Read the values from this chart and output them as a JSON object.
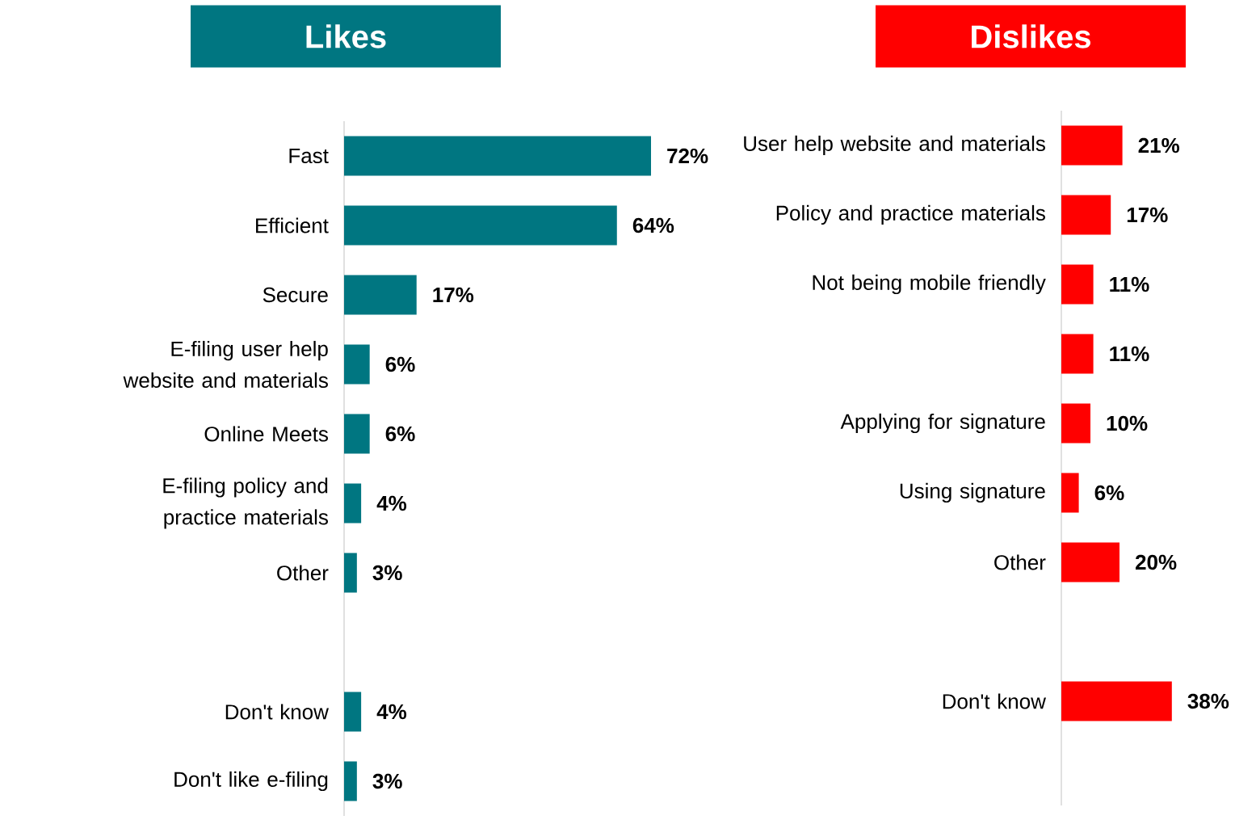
{
  "chart_data": [
    {
      "type": "bar",
      "orientation": "horizontal",
      "title": "Likes",
      "categories": [
        "Fast",
        "Efficient",
        "Secure",
        "E-filing user help website and materials",
        "Online Meets",
        "E-filing policy and practice materials",
        "Other",
        null,
        "Don't know",
        "Don't like e-filing"
      ],
      "series": [
        {
          "color": "#007681",
          "values": [
            72,
            64,
            17,
            6,
            6,
            4,
            3,
            null,
            4,
            3
          ],
          "value_labels": [
            "72%",
            "64%",
            "17%",
            "6%",
            "6%",
            "4%",
            "3%",
            null,
            "4%",
            "3%"
          ]
        }
      ]
    },
    {
      "type": "bar",
      "orientation": "horizontal",
      "title": "Dislikes",
      "categories": [
        "User help website and materials",
        "Policy and practice materials",
        "Not being mobile friendly",
        null,
        "Applying for signature",
        "Using signature",
        "Other",
        null,
        "Don't know",
        null
      ],
      "series": [
        {
          "color": "#ff0000",
          "values": [
            21,
            17,
            11,
            11,
            10,
            6,
            20,
            null,
            38,
            null
          ],
          "value_labels": [
            "21%",
            "17%",
            "11%",
            "11%",
            "10%",
            "6%",
            "20%",
            null,
            "38%",
            null
          ]
        }
      ]
    }
  ]
}
